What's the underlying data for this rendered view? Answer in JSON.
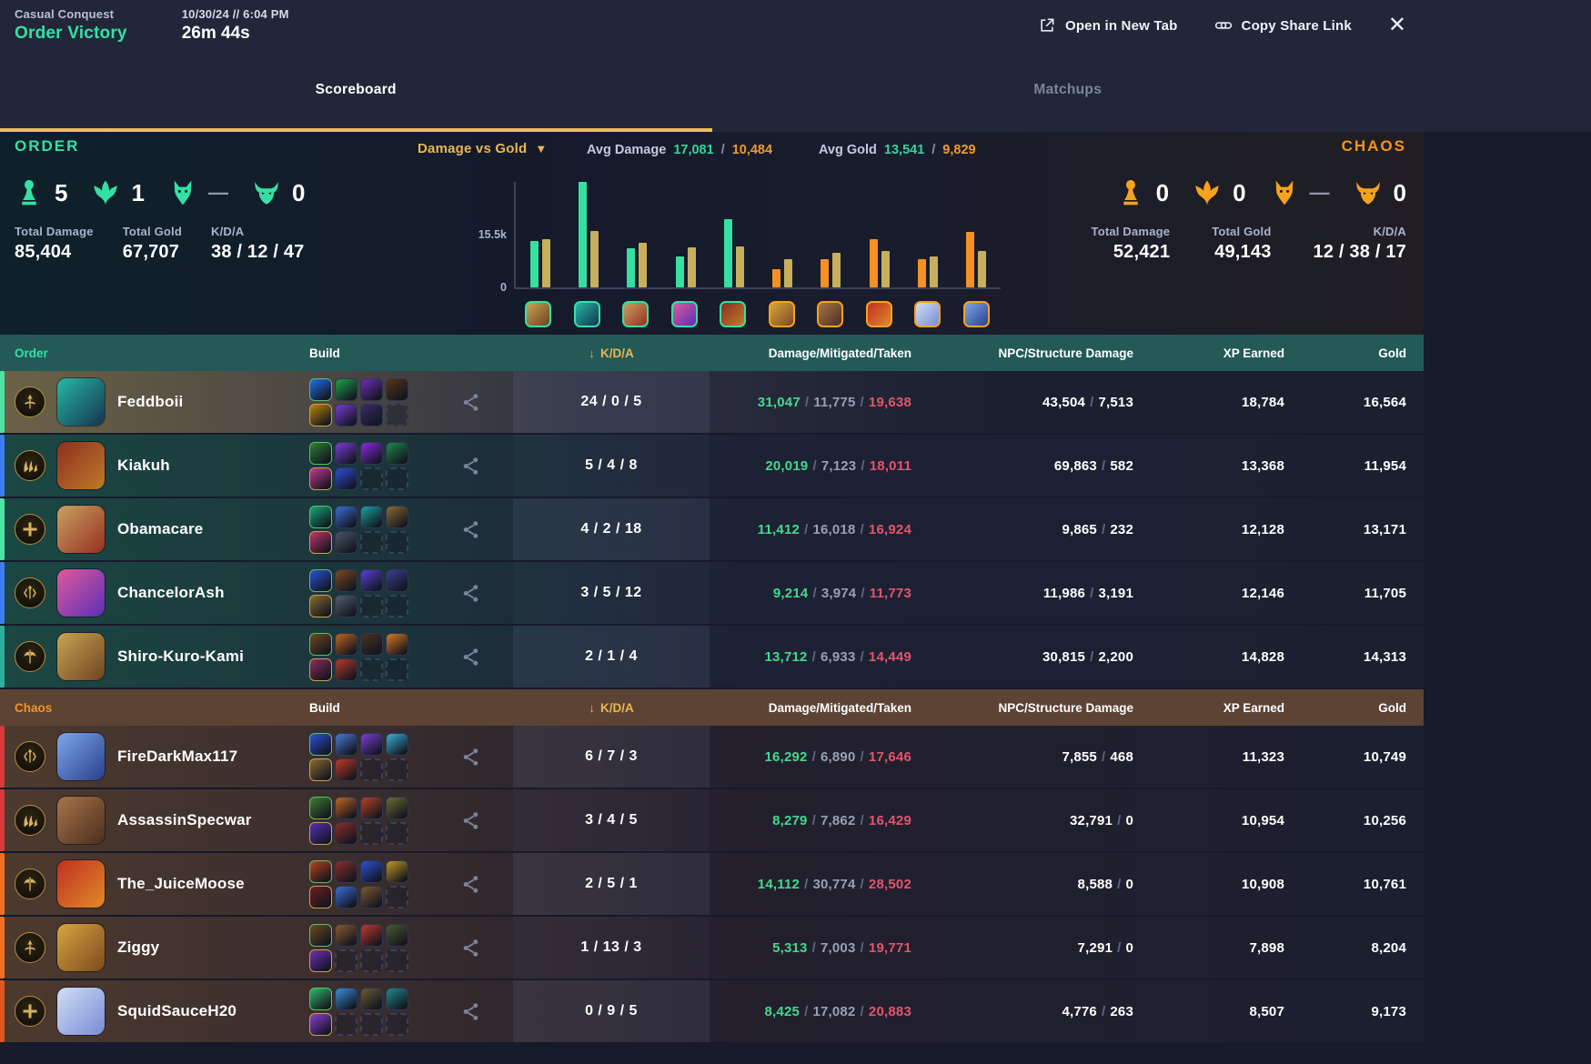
{
  "colors": {
    "order": "#35e0a4",
    "chaos": "#f6941d",
    "gold_accent": "#edbe58",
    "damage_green": "#43d98c",
    "mitigated_gray": "#99a0b3",
    "taken_red": "#e2556a"
  },
  "header": {
    "match_type": "Casual Conquest",
    "result": "Order Victory",
    "datetime": "10/30/24 // 6:04 PM",
    "duration": "26m 44s",
    "actions": {
      "open_new_tab": "Open in New Tab",
      "copy_share_link": "Copy Share Link"
    }
  },
  "tabs": {
    "scoreboard": "Scoreboard",
    "matchups": "Matchups",
    "active": "Scoreboard"
  },
  "summary": {
    "order": {
      "label": "ORDER",
      "objectives": [
        {
          "icon": "tower",
          "count": "5"
        },
        {
          "icon": "phoenix",
          "count": "1"
        },
        {
          "icon": "gold-fury",
          "count": "—"
        },
        {
          "icon": "fire-giant",
          "count": "0"
        }
      ],
      "stats": [
        {
          "label": "Total Damage",
          "value": "85,404"
        },
        {
          "label": "Total Gold",
          "value": "67,707"
        },
        {
          "label": "K/D/A",
          "value": "38 / 12 / 47"
        }
      ]
    },
    "chaos": {
      "label": "CHAOS",
      "objectives": [
        {
          "icon": "tower",
          "count": "0"
        },
        {
          "icon": "phoenix",
          "count": "0"
        },
        {
          "icon": "gold-fury",
          "count": "—"
        },
        {
          "icon": "fire-giant",
          "count": "0"
        }
      ],
      "stats": [
        {
          "label": "Total Damage",
          "value": "52,421"
        },
        {
          "label": "Total Gold",
          "value": "49,143"
        },
        {
          "label": "K/D/A",
          "value": "12 / 38 / 17"
        }
      ]
    }
  },
  "chart": {
    "metric": "Damage vs Gold",
    "avg_damage_label": "Avg Damage",
    "avg_damage_order": "17,081",
    "avg_damage_chaos": "10,484",
    "avg_gold_label": "Avg Gold",
    "avg_gold_order": "13,541",
    "avg_gold_chaos": "9,829",
    "slash": "/"
  },
  "chart_data": {
    "type": "bar",
    "title": "Damage vs Gold",
    "x": [
      "Shiro-Kuro-Kami",
      "Feddboii",
      "Obamacare",
      "ChancelorAsh",
      "Kiakuh",
      "Ziggy",
      "AssassinSpecwar",
      "The_JuiceMoose",
      "SquidSauceH20",
      "FireDarkMax117"
    ],
    "teams": [
      "order",
      "order",
      "order",
      "order",
      "order",
      "chaos",
      "chaos",
      "chaos",
      "chaos",
      "chaos"
    ],
    "series": [
      {
        "name": "Damage",
        "values": [
          13712,
          31047,
          11412,
          9214,
          20019,
          5313,
          8279,
          14112,
          8425,
          16292
        ]
      },
      {
        "name": "Gold",
        "values": [
          14313,
          16564,
          13171,
          11705,
          11954,
          8204,
          10256,
          10761,
          9173,
          10749
        ]
      }
    ],
    "ylim": [
      0,
      31047
    ],
    "y_ticks": [
      "0",
      "15.5k"
    ],
    "legend_position": "none",
    "grid": false,
    "colors": {
      "damage_order": "#35e0a1",
      "damage_chaos": "#f59122",
      "gold": "#c6b05e"
    }
  },
  "table": {
    "sep": "/",
    "columns": {
      "team_order": "Order",
      "team_chaos": "Chaos",
      "build": "Build",
      "kda": "K/D/A",
      "damage": "Damage/Mitigated/Taken",
      "npc": "NPC/Structure Damage",
      "xp": "XP Earned",
      "gold": "Gold"
    },
    "order_rows": [
      {
        "name": "Feddboii",
        "role": "hunter",
        "accent": "#4be3a4",
        "avatar": [
          "#27b9a5",
          "#14324f"
        ],
        "items": [
          "#1f6feb",
          "#1fa54a",
          "#6e2fb8",
          "#5a3318",
          "#b8860b",
          "#7a3bd6",
          "#3d2b68",
          null
        ],
        "kda": "24 / 0 / 5",
        "damage": "31,047",
        "mitigated": "11,775",
        "taken": "19,638",
        "npc": "43,504",
        "structure": "7,513",
        "xp": "18,784",
        "gold": "16,564"
      },
      {
        "name": "Kiakuh",
        "role": "assassin",
        "accent": "#3d7df2",
        "avatar": [
          "#8a2f1f",
          "#c07a2a"
        ],
        "items": [
          "#2f7d32",
          "#7b3fd4",
          "#8a2be2",
          "#1d8a4a",
          "#c23a8f",
          "#2b4fd8",
          null,
          null
        ],
        "kda": "5 / 4 / 8",
        "damage": "20,019",
        "mitigated": "7,123",
        "taken": "18,011",
        "npc": "69,863",
        "structure": "582",
        "xp": "13,368",
        "gold": "11,954"
      },
      {
        "name": "Obamacare",
        "role": "guardian",
        "accent": "#4be3a4",
        "avatar": [
          "#c9a163",
          "#96301f"
        ],
        "items": [
          "#18a77a",
          "#3b6fd8",
          "#1ba4a0",
          "#8a6d2f",
          "#c2366b",
          "#4a5568",
          null,
          null
        ],
        "kda": "4 / 2 / 18",
        "damage": "11,412",
        "mitigated": "16,018",
        "taken": "16,924",
        "npc": "9,865",
        "structure": "232",
        "xp": "12,128",
        "gold": "13,171"
      },
      {
        "name": "ChancelorAsh",
        "role": "mage",
        "accent": "#3d7df2",
        "avatar": [
          "#e05a9b",
          "#5a2fb8"
        ],
        "items": [
          "#2b52d8",
          "#7a4a1f",
          "#5a3fd4",
          "#3b3f8f",
          "#8a6d2f",
          "#556070",
          null,
          null
        ],
        "kda": "3 / 5 / 12",
        "damage": "9,214",
        "mitigated": "3,974",
        "taken": "11,773",
        "npc": "11,986",
        "structure": "3,191",
        "xp": "12,146",
        "gold": "11,705"
      },
      {
        "name": "Shiro-Kuro-Kami",
        "role": "warrior",
        "accent": "#2fae9b",
        "avatar": [
          "#c9a452",
          "#6d4423"
        ],
        "items": [
          "#6d4a1f",
          "#c2651f",
          "#4a3321",
          "#d87a1f",
          "#8a2f5a",
          "#b83a2a",
          null,
          null
        ],
        "kda": "2 / 1 / 4",
        "damage": "13,712",
        "mitigated": "6,933",
        "taken": "14,449",
        "npc": "30,815",
        "structure": "2,200",
        "xp": "14,828",
        "gold": "14,313"
      }
    ],
    "chaos_rows": [
      {
        "name": "FireDarkMax117",
        "role": "mage",
        "accent": "#d93a3a",
        "avatar": [
          "#7da7e8",
          "#2a3f8f"
        ],
        "items": [
          "#2b52d8",
          "#4a7ad8",
          "#7b3fd4",
          "#3bb0d8",
          "#8a6d2f",
          "#c23a2a",
          null,
          null
        ],
        "kda": "6 / 7 / 3",
        "damage": "16,292",
        "mitigated": "6,890",
        "taken": "17,646",
        "npc": "7,855",
        "structure": "468",
        "xp": "11,323",
        "gold": "10,749"
      },
      {
        "name": "AssassinSpecwar",
        "role": "assassin",
        "accent": "#d93a3a",
        "avatar": [
          "#a9744a",
          "#4a2e1e"
        ],
        "items": [
          "#3f7d2f",
          "#c2651f",
          "#b8431f",
          "#6d6d2f",
          "#5a2fb8",
          "#8a2f2a",
          null,
          null
        ],
        "kda": "3 / 4 / 5",
        "damage": "8,279",
        "mitigated": "7,862",
        "taken": "16,429",
        "npc": "32,791",
        "structure": "0",
        "xp": "10,954",
        "gold": "10,256"
      },
      {
        "name": "The_JuiceMoose",
        "role": "warrior",
        "accent": "#f2701f",
        "avatar": [
          "#c03020",
          "#e08a2a"
        ],
        "items": [
          "#b8431f",
          "#8a2f2a",
          "#2b52d8",
          "#c2981f",
          "#6d1f1f",
          "#3b6fd8",
          "#7a5a2f",
          null
        ],
        "kda": "2 / 5 / 1",
        "damage": "14,112",
        "mitigated": "30,774",
        "taken": "28,502",
        "npc": "8,588",
        "structure": "0",
        "xp": "10,908",
        "gold": "10,761"
      },
      {
        "name": "Ziggy",
        "role": "hunter",
        "accent": "#f2701f",
        "avatar": [
          "#d9a441",
          "#7c4a1e"
        ],
        "items": [
          "#6d4a1f",
          "#8a5a2f",
          "#c23a2a",
          "#4a5a2f",
          "#6e2fb8",
          null,
          null,
          null
        ],
        "kda": "1 / 13 / 3",
        "damage": "5,313",
        "mitigated": "7,003",
        "taken": "19,771",
        "npc": "7,291",
        "structure": "0",
        "xp": "7,898",
        "gold": "8,204"
      },
      {
        "name": "SquidSauceH20",
        "role": "guardian",
        "accent": "#e2561f",
        "avatar": [
          "#cfe0f2",
          "#7a8ad9"
        ],
        "items": [
          "#2fb86d",
          "#3b8fd8",
          "#6d5a2f",
          "#1f8a8a",
          "#8a3fd4",
          null,
          null,
          null
        ],
        "kda": "0 / 9 / 5",
        "damage": "8,425",
        "mitigated": "17,082",
        "taken": "20,883",
        "npc": "4,776",
        "structure": "263",
        "xp": "8,507",
        "gold": "9,173"
      }
    ]
  }
}
